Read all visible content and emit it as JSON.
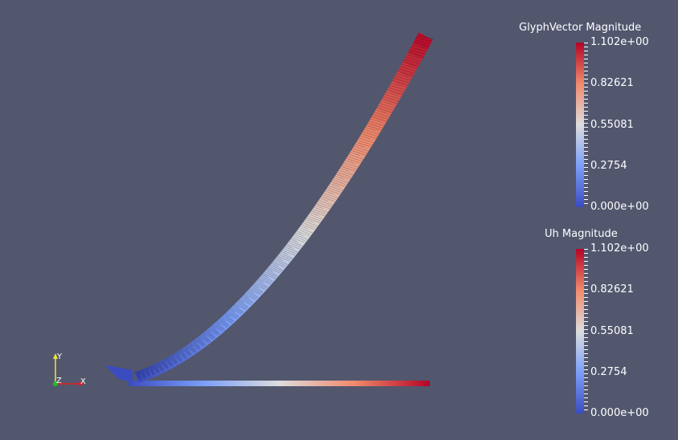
{
  "colors": {
    "background": "#52576e",
    "low": "#3b4cc0",
    "mid": "#dddddd",
    "high": "#b40426",
    "axis_x": "#e02020",
    "axis_y": "#e8e830",
    "axis_z": "#20c020"
  },
  "legends": [
    {
      "title": "GlyphVector Magnitude",
      "labels": [
        "1.102e+00",
        "0.82621",
        "0.55081",
        "0.2754",
        "0.000e+00"
      ]
    },
    {
      "title": "Uh Magnitude",
      "labels": [
        "1.102e+00",
        "0.82621",
        "0.55081",
        "0.2754",
        "0.000e+00"
      ]
    }
  ],
  "axes": {
    "x_label": "X",
    "y_label": "Y",
    "z_label": "Z"
  }
}
